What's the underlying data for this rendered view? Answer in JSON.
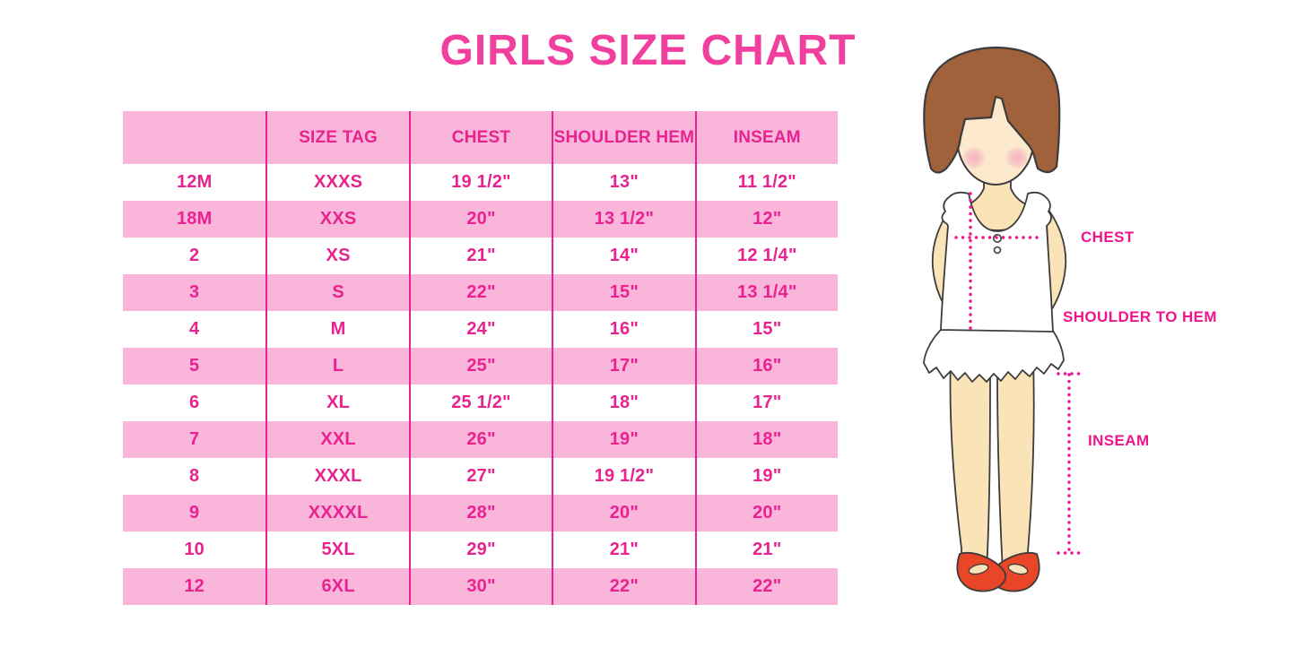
{
  "chart_data": {
    "type": "table",
    "title": "GIRLS SIZE CHART",
    "columns": [
      "",
      "SIZE TAG",
      "CHEST",
      "SHOULDER HEM",
      "INSEAM"
    ],
    "rows": [
      [
        "12M",
        "XXXS",
        "19 1/2\"",
        "13\"",
        "11 1/2\""
      ],
      [
        "18M",
        "XXS",
        "20\"",
        "13 1/2\"",
        "12\""
      ],
      [
        "2",
        "XS",
        "21\"",
        "14\"",
        "12 1/4\""
      ],
      [
        "3",
        "S",
        "22\"",
        "15\"",
        "13 1/4\""
      ],
      [
        "4",
        "M",
        "24\"",
        "16\"",
        "15\""
      ],
      [
        "5",
        "L",
        "25\"",
        "17\"",
        "16\""
      ],
      [
        "6",
        "XL",
        "25 1/2\"",
        "18\"",
        "17\""
      ],
      [
        "7",
        "XXL",
        "26\"",
        "19\"",
        "18\""
      ],
      [
        "8",
        "XXXL",
        "27\"",
        "19 1/2\"",
        "19\""
      ],
      [
        "9",
        "XXXXL",
        "28\"",
        "20\"",
        "20\""
      ],
      [
        "10",
        "5XL",
        "29\"",
        "21\"",
        "21\""
      ],
      [
        "12",
        "6XL",
        "30\"",
        "22\"",
        "22\""
      ]
    ],
    "row_stripe_pattern": "white rows alternating with pink rows, header pink"
  },
  "figure": {
    "labels": {
      "chest": "CHEST",
      "shoulder_to_hem": "SHOULDER TO HEM",
      "inseam": "INSEAM"
    }
  },
  "colors": {
    "row_pink": "#FAB5DB",
    "table_magenta": "#E8238F",
    "title_pink": "#F13F9E",
    "label_magenta": "#F0148C",
    "outline": "#3C3C3C",
    "skin": "#FBE3B8",
    "face_skin": "#FCE8CA",
    "hair_brown": "#A0613B",
    "shoe_red": "#E94527",
    "blush": "#F5AFC2"
  }
}
